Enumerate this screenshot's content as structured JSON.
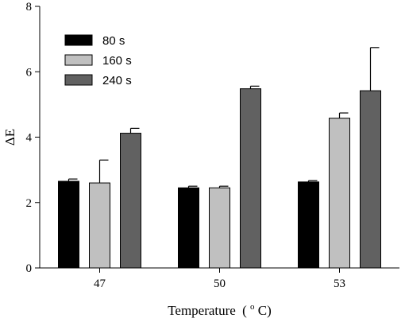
{
  "chart_data": {
    "type": "bar",
    "categories": [
      "47",
      "50",
      "53"
    ],
    "series": [
      {
        "name": "80 s",
        "color": "#000000",
        "values": [
          2.65,
          2.45,
          2.63
        ],
        "errors": [
          0.07,
          0.05,
          0.04
        ]
      },
      {
        "name": "160 s",
        "color": "#c0c0c0",
        "values": [
          2.6,
          2.45,
          4.58
        ],
        "errors": [
          0.7,
          0.05,
          0.16
        ]
      },
      {
        "name": "240 s",
        "color": "#616161",
        "values": [
          4.12,
          5.48,
          5.42
        ],
        "errors": [
          0.15,
          0.08,
          1.32
        ]
      }
    ],
    "xlabel": "Temperature",
    "xlabel_unit": "(°C)",
    "xlabel_unit_parts": {
      "open": "(",
      "sup": "o",
      "unit": "C)"
    },
    "ylabel": "ΔE",
    "ylim": [
      0,
      8
    ],
    "yticks": [
      "0",
      "2",
      "4",
      "6",
      "8"
    ],
    "grid": false,
    "legend_position": "top-left"
  }
}
